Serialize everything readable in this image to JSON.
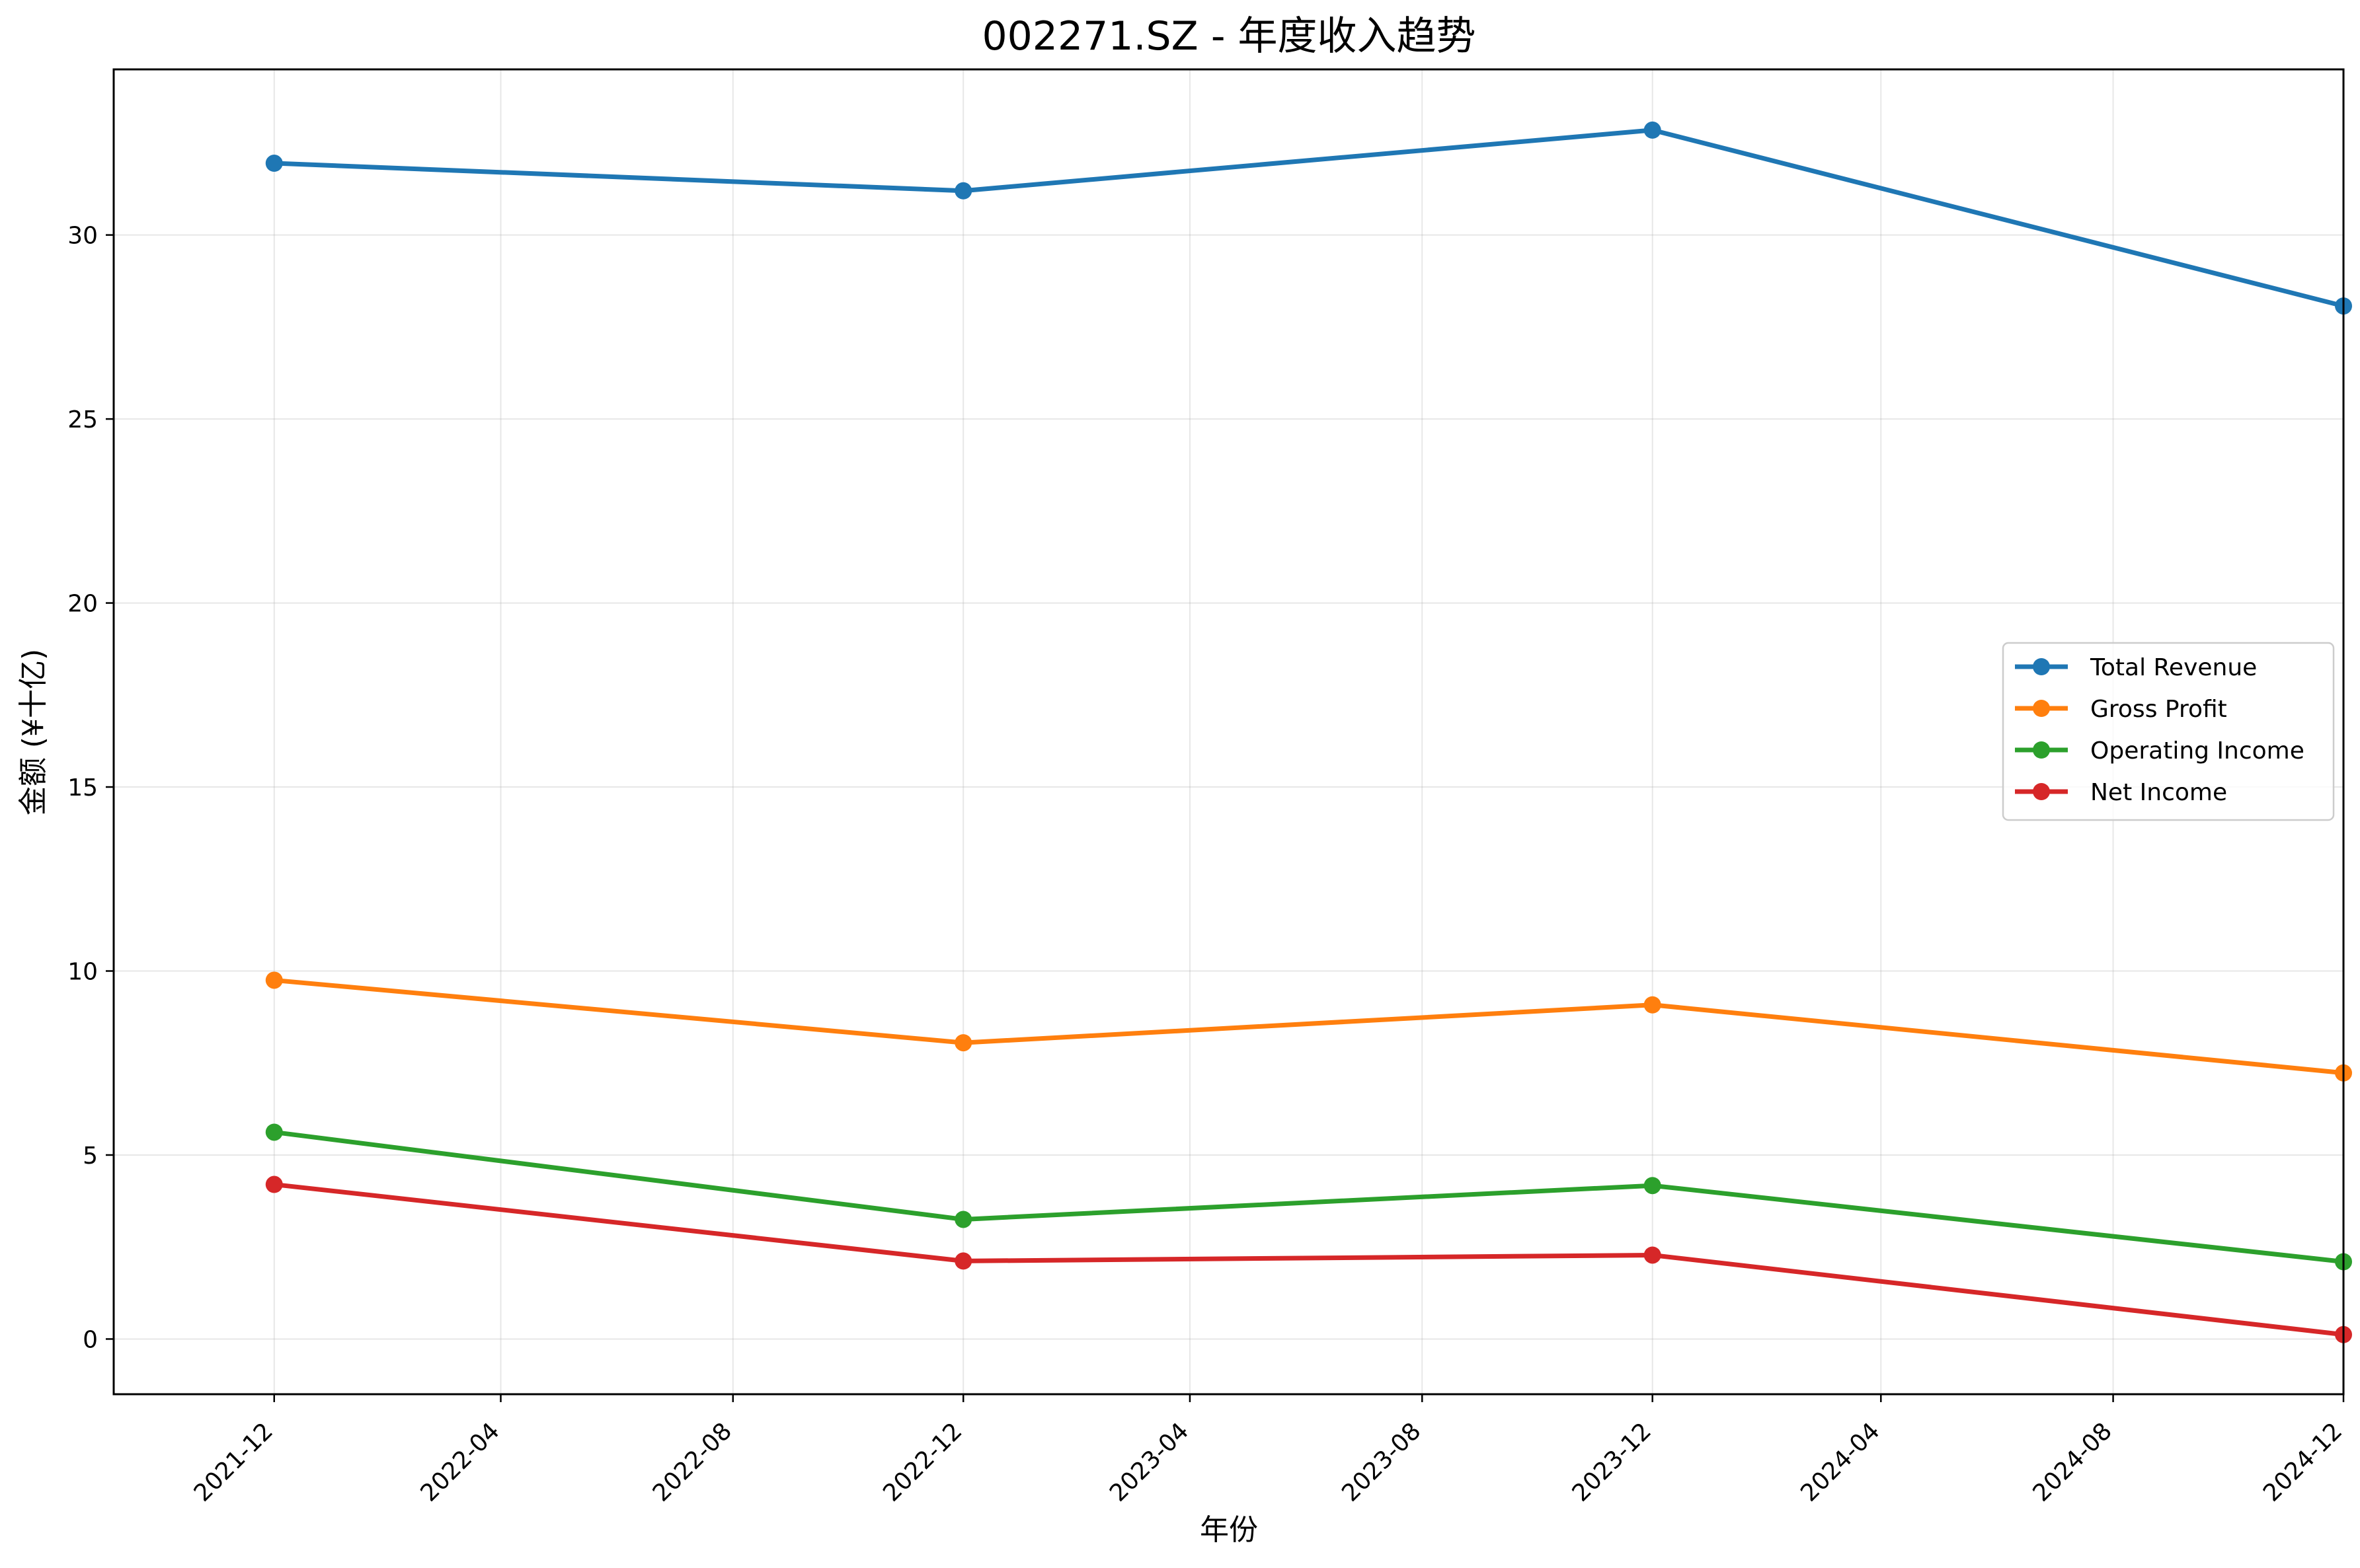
{
  "chart_data": {
    "type": "line",
    "title": "002271.SZ - 年度收入趋势",
    "xlabel": "年份",
    "ylabel": "金额 (¥十亿)",
    "x_ticks": [
      "2021-12",
      "2022-04",
      "2022-08",
      "2022-12",
      "2023-04",
      "2023-08",
      "2023-12",
      "2024-04",
      "2024-08",
      "2024-12"
    ],
    "y_ticks": [
      0,
      5,
      10,
      15,
      20,
      25,
      30
    ],
    "xlim": [
      "2021-10-07",
      "2024-12-31"
    ],
    "ylim": [
      -1.5,
      34.5
    ],
    "grid": true,
    "legend_position": "center-right",
    "x": [
      "2021-12-31",
      "2022-12-31",
      "2023-12-31",
      "2024-12-31"
    ],
    "series": [
      {
        "name": "Total Revenue",
        "color": "#1f77b4",
        "values": [
          31.95,
          31.2,
          32.85,
          28.07
        ]
      },
      {
        "name": "Gross Profit",
        "color": "#ff7f0e",
        "values": [
          9.75,
          8.05,
          9.08,
          7.23
        ]
      },
      {
        "name": "Operating Income",
        "color": "#2ca02c",
        "values": [
          5.62,
          3.25,
          4.17,
          2.1
        ]
      },
      {
        "name": "Net Income",
        "color": "#d62728",
        "values": [
          4.2,
          2.12,
          2.28,
          0.12
        ]
      }
    ]
  }
}
